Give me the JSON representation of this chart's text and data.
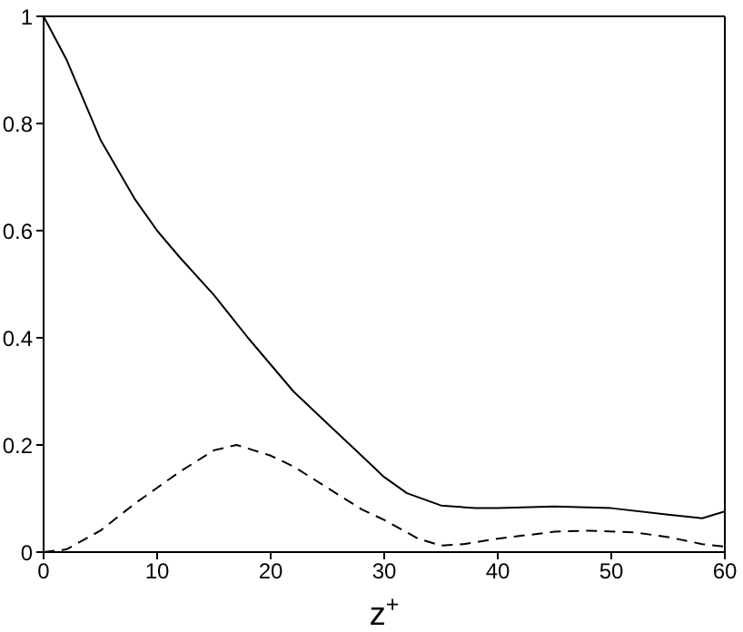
{
  "chart_data": {
    "type": "line",
    "xlabel": "z$^{+}$",
    "xlim": [
      0,
      60
    ],
    "xticks": [
      0,
      10,
      20,
      30,
      40,
      50,
      60
    ],
    "ylim": [
      0,
      1
    ],
    "yticks": [
      0,
      0.2,
      0.4,
      0.6,
      0.8,
      1
    ],
    "marker": "none",
    "series": [
      {
        "color": "#000000",
        "line_style": "solid",
        "x": [
          0,
          2,
          5,
          8,
          10,
          12,
          15,
          18,
          20,
          22,
          25,
          28,
          30,
          32,
          35,
          38,
          40,
          45,
          50,
          55,
          58,
          60
        ],
        "values": [
          1,
          0.92,
          0.77,
          0.66,
          0.6,
          0.55,
          0.48,
          0.4,
          0.35,
          0.3,
          0.24,
          0.18,
          0.14,
          0.11,
          0.087,
          0.082,
          0.082,
          0.085,
          0.082,
          0.07,
          0.063,
          0.076
        ]
      },
      {
        "color": "#000000",
        "line_style": "dashed",
        "x": [
          0,
          2,
          5,
          8,
          10,
          12,
          15,
          17,
          20,
          22,
          25,
          28,
          30,
          33,
          35,
          37,
          40,
          45,
          48,
          52,
          55,
          58,
          60
        ],
        "values": [
          0,
          0.005,
          0.04,
          0.09,
          0.12,
          0.15,
          0.19,
          0.2,
          0.18,
          0.16,
          0.12,
          0.08,
          0.06,
          0.025,
          0.012,
          0.015,
          0.025,
          0.038,
          0.04,
          0.037,
          0.028,
          0.015,
          0.01
        ]
      }
    ]
  }
}
